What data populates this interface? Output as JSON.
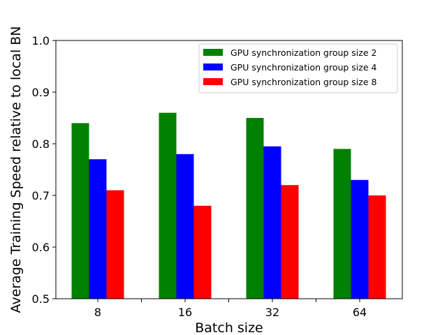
{
  "chart_data": {
    "type": "bar",
    "xlabel": "Batch size",
    "ylabel": "Average Training Speed relative to local BN",
    "categories": [
      "8",
      "16",
      "32",
      "64"
    ],
    "ylim": [
      0.5,
      1.0
    ],
    "yticks": [
      "0.5",
      "0.6",
      "0.7",
      "0.8",
      "0.9",
      "1.0"
    ],
    "legend_position": "top-right",
    "grid": false,
    "series": [
      {
        "name": "GPU synchronization group size 2",
        "color": "#008000",
        "values": [
          0.84,
          0.86,
          0.85,
          0.79
        ]
      },
      {
        "name": "GPU synchronization group size 4",
        "color": "#0000ff",
        "values": [
          0.77,
          0.78,
          0.795,
          0.73
        ]
      },
      {
        "name": "GPU synchronization group size 8",
        "color": "#ff0000",
        "values": [
          0.71,
          0.68,
          0.72,
          0.7
        ]
      }
    ]
  }
}
